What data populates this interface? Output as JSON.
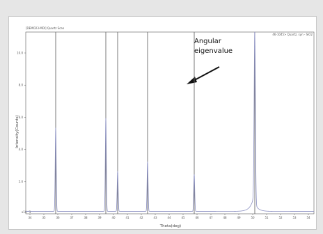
{
  "chart_data": {
    "type": "line",
    "title": "[DEMO23-MDI] Quartz Scan",
    "legend": "46-1045> Quartz, syn - SiO2",
    "xlabel": "Theta(deg)",
    "ylabel": "Intensity(Counts)",
    "y_multiplier_label": "x10^3",
    "xlim": [
      33.7,
      54.4
    ],
    "ylim": [
      0,
      11.3
    ],
    "x_ticks": [
      34,
      35,
      36,
      37,
      38,
      39,
      40,
      41,
      42,
      43,
      44,
      45,
      46,
      47,
      48,
      49,
      50,
      51,
      52,
      53,
      54
    ],
    "y_ticks": [
      2.0,
      4.0,
      6.0,
      8.0,
      10.0
    ],
    "grid": false,
    "legend_position": "top-right",
    "reference_lines": [
      35.85,
      39.45,
      40.3,
      42.45,
      45.8,
      50.15
    ],
    "peaks": [
      {
        "x": 35.85,
        "y": 5.2
      },
      {
        "x": 39.45,
        "y": 5.8
      },
      {
        "x": 40.3,
        "y": 2.5
      },
      {
        "x": 42.45,
        "y": 3.1
      },
      {
        "x": 45.8,
        "y": 2.3
      },
      {
        "x": 50.15,
        "y": 10.4
      }
    ],
    "annotation": {
      "line1": "Angular",
      "line2": "eigenvalue",
      "target_x": 45.8
    }
  },
  "colors": {
    "series": "#8a8fc0",
    "reference": "#6a6a6a",
    "axis": "#555555",
    "arrow": "#111111"
  }
}
